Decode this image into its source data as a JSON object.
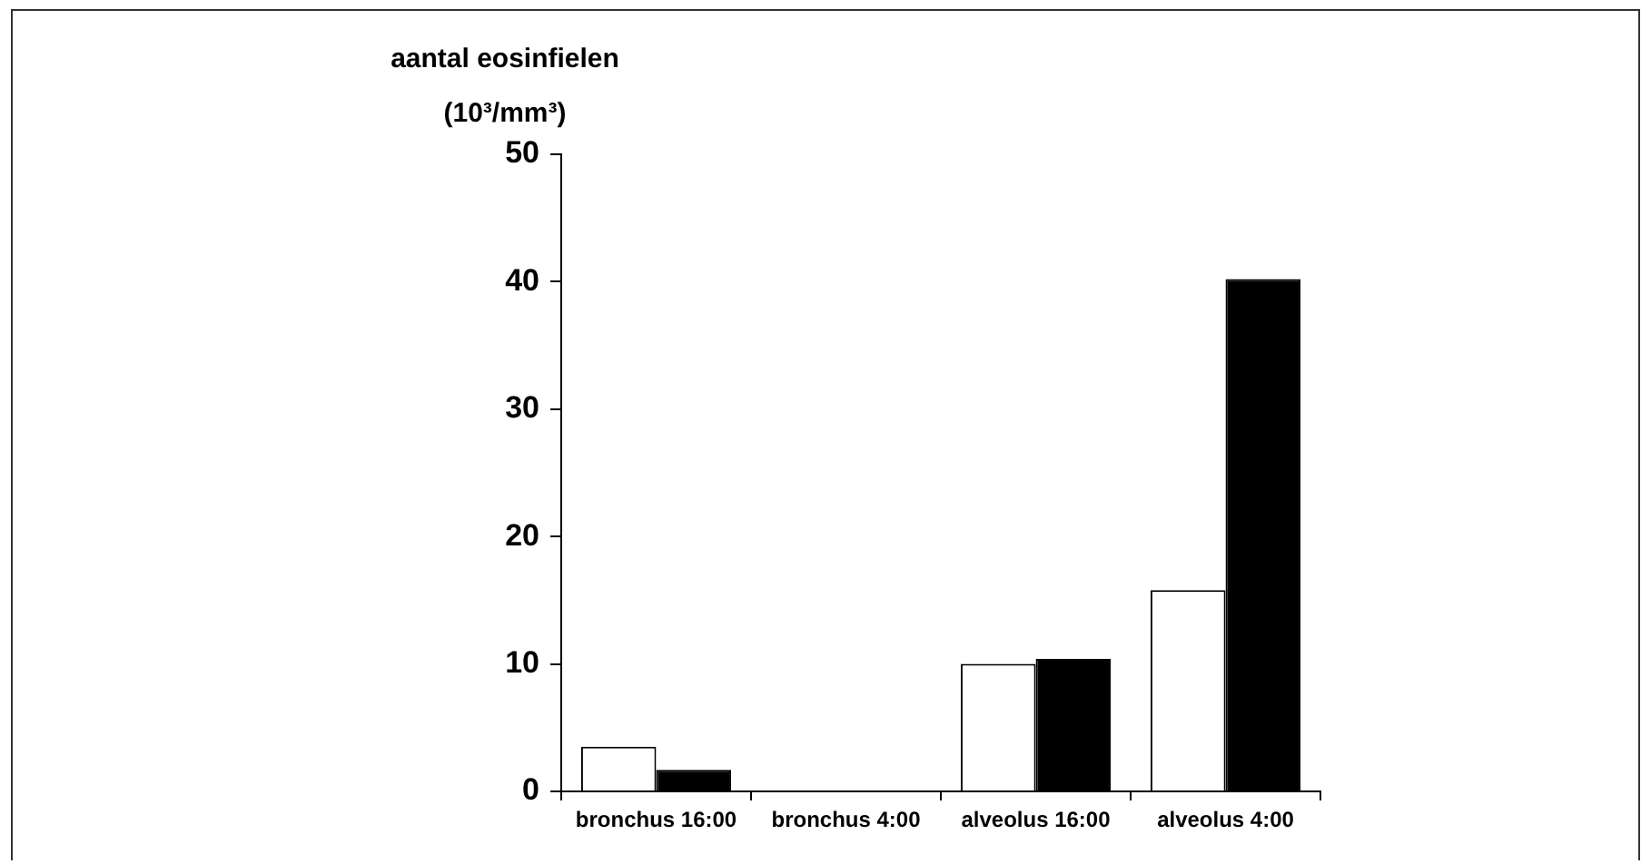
{
  "chart_data": {
    "type": "bar",
    "ylabel": "aantal eosinfielen (10³/mm³)",
    "categories": [
      "bronchus 16:00",
      "bronchus 4:00",
      "alveolus 16:00",
      "alveolus 4:00"
    ],
    "series": [
      {
        "color": "#ffffff",
        "values": [
          3.5,
          0,
          10,
          15.8
        ]
      },
      {
        "color": "#000000",
        "values": [
          1.7,
          0,
          10.4,
          40.2
        ]
      }
    ],
    "ylim": [
      0,
      50
    ],
    "yticks": [
      0,
      10,
      20,
      30,
      40,
      50
    ],
    "grid": false,
    "legend": false
  }
}
